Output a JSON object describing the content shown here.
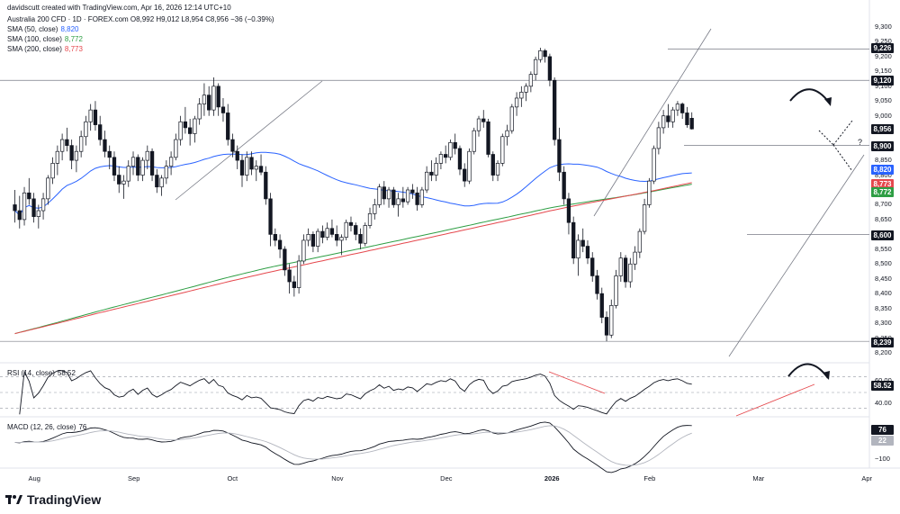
{
  "header": {
    "author_line": "davidscutt created with TradingView.com, Apr 16, 2026 12:14 UTC+10",
    "instrument_line": "Australia 200 CFD · 1D · FOREX.com  O8,992  H9,012  L8,954  C8,956  −36 (−0.39%)",
    "sma50_label": "SMA (50, close)",
    "sma50_value": "8,820",
    "sma100_label": "SMA (100, close)",
    "sma100_value": "8,772",
    "sma200_label": "SMA (200, close)",
    "sma200_value": "8,773",
    "rsi_label": "RSI (14, close)",
    "rsi_value": "58.52",
    "macd_label": "MACD (12, 26, close)",
    "macd_value": "76"
  },
  "brand": "TradingView",
  "colors": {
    "up": "#131722",
    "down": "#131722",
    "sma50": "#2962ff",
    "sma100": "#2e9e44",
    "sma200": "#e5484d",
    "axis_text": "#131722",
    "grid_ref": "#9598a1"
  },
  "price_tags": [
    {
      "label": "9,226",
      "kind": "level"
    },
    {
      "label": "9,120",
      "kind": "level"
    },
    {
      "label": "8,956",
      "kind": "close"
    },
    {
      "label": "8,900",
      "kind": "level"
    },
    {
      "label": "8,820",
      "kind": "sma50"
    },
    {
      "label": "8,773",
      "kind": "sma200"
    },
    {
      "label": "8,772",
      "kind": "sma100"
    },
    {
      "label": "8,600",
      "kind": "level"
    },
    {
      "label": "8,239",
      "kind": "level"
    }
  ],
  "rsi_tag": "58.52",
  "macd_tags": [
    "76",
    "22"
  ],
  "annotation_question": "?",
  "chart_data": {
    "type": "candlestick",
    "instrument": "Australia 200 CFD",
    "timeframe": "1D",
    "y_ticks": [
      "9,300",
      "9,250",
      "9,200",
      "9,150",
      "9,100",
      "9,050",
      "9,000",
      "8,950",
      "8,900",
      "8,850",
      "8,800",
      "8,750",
      "8,700",
      "8,650",
      "8,600",
      "8,550",
      "8,500",
      "8,450",
      "8,400",
      "8,350",
      "8,300",
      "8,250",
      "8,200"
    ],
    "ylim": [
      8200,
      9300
    ],
    "x_ticks": [
      {
        "label": "Aug",
        "idx": 2
      },
      {
        "label": "Sep",
        "idx": 23
      },
      {
        "label": "Oct",
        "idx": 44
      },
      {
        "label": "Nov",
        "idx": 66
      },
      {
        "label": "Dec",
        "idx": 89
      },
      {
        "label": "2026",
        "idx": 111
      },
      {
        "label": "Feb",
        "idx": 132
      },
      {
        "label": "Mar",
        "idx": 155
      },
      {
        "label": "Apr",
        "idx": 178
      }
    ],
    "ohlc": [
      [
        8700,
        8750,
        8640,
        8680
      ],
      [
        8680,
        8730,
        8620,
        8650
      ],
      [
        8650,
        8760,
        8630,
        8740
      ],
      [
        8740,
        8790,
        8700,
        8720
      ],
      [
        8720,
        8740,
        8640,
        8660
      ],
      [
        8660,
        8700,
        8620,
        8680
      ],
      [
        8680,
        8740,
        8650,
        8720
      ],
      [
        8720,
        8800,
        8700,
        8790
      ],
      [
        8790,
        8860,
        8770,
        8840
      ],
      [
        8840,
        8900,
        8800,
        8880
      ],
      [
        8880,
        8940,
        8850,
        8920
      ],
      [
        8920,
        8960,
        8880,
        8900
      ],
      [
        8900,
        8920,
        8820,
        8850
      ],
      [
        8850,
        8900,
        8810,
        8880
      ],
      [
        8880,
        8950,
        8860,
        8930
      ],
      [
        8930,
        9000,
        8900,
        8980
      ],
      [
        8980,
        9040,
        8950,
        9020
      ],
      [
        9020,
        9050,
        8950,
        8970
      ],
      [
        8970,
        9000,
        8900,
        8920
      ],
      [
        8920,
        8950,
        8860,
        8880
      ],
      [
        8880,
        8900,
        8820,
        8860
      ],
      [
        8860,
        8880,
        8780,
        8800
      ],
      [
        8800,
        8830,
        8740,
        8770
      ],
      [
        8770,
        8800,
        8720,
        8780
      ],
      [
        8780,
        8850,
        8760,
        8830
      ],
      [
        8830,
        8880,
        8800,
        8860
      ],
      [
        8860,
        8870,
        8780,
        8800
      ],
      [
        8800,
        8860,
        8780,
        8850
      ],
      [
        8850,
        8900,
        8820,
        8880
      ],
      [
        8880,
        8890,
        8780,
        8800
      ],
      [
        8800,
        8820,
        8740,
        8760
      ],
      [
        8760,
        8800,
        8730,
        8790
      ],
      [
        8790,
        8850,
        8770,
        8830
      ],
      [
        8830,
        8880,
        8800,
        8860
      ],
      [
        8860,
        8940,
        8850,
        8920
      ],
      [
        8920,
        9000,
        8900,
        8980
      ],
      [
        8980,
        9030,
        8940,
        8960
      ],
      [
        8960,
        8990,
        8900,
        8940
      ],
      [
        8940,
        9000,
        8910,
        8990
      ],
      [
        8990,
        9060,
        8970,
        9040
      ],
      [
        9040,
        9110,
        9000,
        9070
      ],
      [
        9070,
        9100,
        9000,
        9020
      ],
      [
        9020,
        9130,
        9000,
        9100
      ],
      [
        9100,
        9110,
        9000,
        9030
      ],
      [
        9030,
        9060,
        8980,
        9010
      ],
      [
        9010,
        9040,
        8900,
        8920
      ],
      [
        8920,
        8940,
        8860,
        8880
      ],
      [
        8880,
        8900,
        8820,
        8850
      ],
      [
        8850,
        8870,
        8760,
        8800
      ],
      [
        8800,
        8880,
        8780,
        8860
      ],
      [
        8860,
        8880,
        8800,
        8820
      ],
      [
        8820,
        8850,
        8780,
        8830
      ],
      [
        8830,
        8870,
        8800,
        8810
      ],
      [
        8810,
        8830,
        8700,
        8720
      ],
      [
        8720,
        8740,
        8560,
        8600
      ],
      [
        8600,
        8620,
        8560,
        8580
      ],
      [
        8580,
        8600,
        8520,
        8550
      ],
      [
        8550,
        8560,
        8460,
        8480
      ],
      [
        8480,
        8500,
        8400,
        8440
      ],
      [
        8440,
        8460,
        8390,
        8420
      ],
      [
        8420,
        8530,
        8400,
        8510
      ],
      [
        8510,
        8600,
        8500,
        8580
      ],
      [
        8580,
        8620,
        8560,
        8600
      ],
      [
        8600,
        8610,
        8540,
        8560
      ],
      [
        8560,
        8620,
        8540,
        8610
      ],
      [
        8610,
        8630,
        8570,
        8590
      ],
      [
        8590,
        8640,
        8580,
        8620
      ],
      [
        8620,
        8650,
        8590,
        8600
      ],
      [
        8600,
        8630,
        8560,
        8580
      ],
      [
        8580,
        8600,
        8530,
        8590
      ],
      [
        8590,
        8650,
        8580,
        8640
      ],
      [
        8640,
        8660,
        8610,
        8630
      ],
      [
        8630,
        8640,
        8580,
        8600
      ],
      [
        8600,
        8620,
        8550,
        8570
      ],
      [
        8570,
        8640,
        8560,
        8630
      ],
      [
        8630,
        8690,
        8620,
        8670
      ],
      [
        8670,
        8720,
        8650,
        8700
      ],
      [
        8700,
        8770,
        8690,
        8760
      ],
      [
        8760,
        8780,
        8700,
        8720
      ],
      [
        8720,
        8760,
        8690,
        8750
      ],
      [
        8750,
        8760,
        8690,
        8700
      ],
      [
        8700,
        8740,
        8660,
        8720
      ],
      [
        8720,
        8760,
        8690,
        8710
      ],
      [
        8710,
        8760,
        8700,
        8750
      ],
      [
        8750,
        8770,
        8720,
        8740
      ],
      [
        8740,
        8760,
        8680,
        8700
      ],
      [
        8700,
        8760,
        8690,
        8750
      ],
      [
        8750,
        8830,
        8740,
        8810
      ],
      [
        8810,
        8850,
        8780,
        8800
      ],
      [
        8800,
        8860,
        8780,
        8840
      ],
      [
        8840,
        8880,
        8820,
        8870
      ],
      [
        8870,
        8900,
        8840,
        8860
      ],
      [
        8860,
        8920,
        8850,
        8910
      ],
      [
        8910,
        8940,
        8870,
        8890
      ],
      [
        8890,
        8900,
        8800,
        8820
      ],
      [
        8820,
        8840,
        8760,
        8780
      ],
      [
        8780,
        8890,
        8770,
        8880
      ],
      [
        8880,
        8960,
        8870,
        8950
      ],
      [
        8950,
        9000,
        8930,
        8990
      ],
      [
        8990,
        9020,
        8960,
        8980
      ],
      [
        8980,
        8990,
        8860,
        8870
      ],
      [
        8870,
        8880,
        8780,
        8800
      ],
      [
        8800,
        8850,
        8780,
        8840
      ],
      [
        8840,
        8940,
        8830,
        8930
      ],
      [
        8930,
        8970,
        8900,
        8950
      ],
      [
        8950,
        9040,
        8940,
        9030
      ],
      [
        9030,
        9080,
        9000,
        9060
      ],
      [
        9060,
        9100,
        9030,
        9080
      ],
      [
        9080,
        9110,
        9050,
        9100
      ],
      [
        9100,
        9150,
        9080,
        9140
      ],
      [
        9140,
        9200,
        9120,
        9190
      ],
      [
        9190,
        9230,
        9180,
        9220
      ],
      [
        9220,
        9226,
        9180,
        9200
      ],
      [
        9200,
        9210,
        9100,
        9120
      ],
      [
        9120,
        9130,
        8900,
        8920
      ],
      [
        8920,
        8960,
        8780,
        8810
      ],
      [
        8810,
        8830,
        8700,
        8720
      ],
      [
        8720,
        8740,
        8600,
        8640
      ],
      [
        8640,
        8660,
        8500,
        8520
      ],
      [
        8520,
        8600,
        8460,
        8580
      ],
      [
        8580,
        8620,
        8540,
        8560
      ],
      [
        8560,
        8580,
        8500,
        8520
      ],
      [
        8520,
        8540,
        8440,
        8460
      ],
      [
        8460,
        8480,
        8380,
        8400
      ],
      [
        8400,
        8420,
        8300,
        8320
      ],
      [
        8320,
        8340,
        8239,
        8260
      ],
      [
        8260,
        8380,
        8250,
        8360
      ],
      [
        8360,
        8480,
        8350,
        8460
      ],
      [
        8460,
        8540,
        8440,
        8520
      ],
      [
        8520,
        8530,
        8420,
        8440
      ],
      [
        8440,
        8520,
        8420,
        8500
      ],
      [
        8500,
        8560,
        8480,
        8540
      ],
      [
        8540,
        8620,
        8520,
        8610
      ],
      [
        8610,
        8720,
        8600,
        8700
      ],
      [
        8700,
        8790,
        8690,
        8780
      ],
      [
        8780,
        8900,
        8770,
        8890
      ],
      [
        8890,
        8980,
        8870,
        8960
      ],
      [
        8960,
        9020,
        8940,
        9000
      ],
      [
        9000,
        9040,
        8960,
        8980
      ],
      [
        8980,
        9030,
        8960,
        9020
      ],
      [
        9020,
        9050,
        9000,
        9040
      ],
      [
        9040,
        9045,
        8990,
        9010
      ],
      [
        9010,
        9030,
        8960,
        8970
      ],
      [
        8992,
        9012,
        8954,
        8956
      ]
    ],
    "first_index_offset": -2,
    "sma_50_last": 8820,
    "sma_100_last": 8772,
    "sma_200_last": 8773,
    "sma_200_start": 8265,
    "sma_100_start": 8265,
    "horizontal_levels": [
      9226,
      9120,
      8900,
      8600,
      8239
    ],
    "rsi": {
      "period": 14,
      "last": 58.52,
      "bands": [
        70,
        50,
        30
      ]
    },
    "macd": {
      "fast": 12,
      "slow": 26,
      "last": 76,
      "signal_last": 22
    }
  }
}
